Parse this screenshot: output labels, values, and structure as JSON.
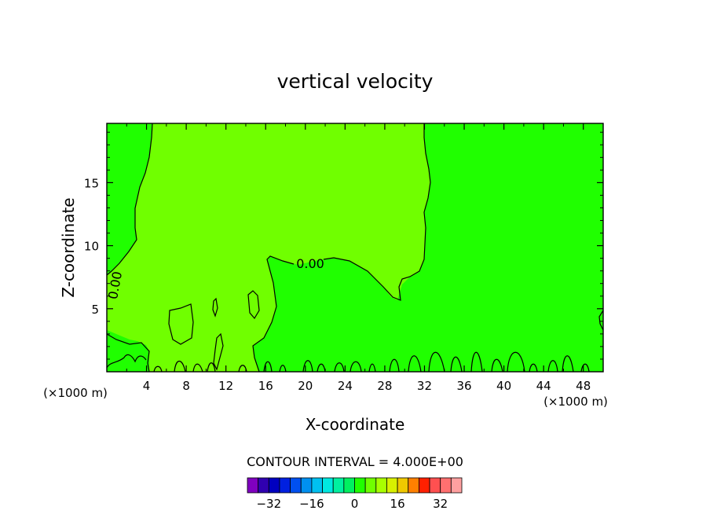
{
  "chart_data": {
    "type": "contour",
    "title": "vertical velocity",
    "xlabel": "X-coordinate",
    "ylabel": "Z-coordinate",
    "x_unit": "(×1000 m)",
    "y_unit": "(×1000 m)",
    "xlim": [
      0,
      50
    ],
    "ylim": [
      0,
      19.7
    ],
    "xticks": [
      4,
      8,
      12,
      16,
      20,
      24,
      28,
      32,
      36,
      40,
      44,
      48
    ],
    "yticks": [
      5,
      10,
      15
    ],
    "contour_label": "0.00",
    "contour_interval_text": "CONTOUR INTERVAL = 4.000E+00",
    "colorbar": {
      "ticks": [
        -32,
        -16,
        0,
        16,
        32
      ],
      "levels": [
        -36,
        -32,
        -28,
        -24,
        -20,
        -16,
        -12,
        -8,
        -4,
        0,
        4,
        8,
        12,
        16,
        20,
        24,
        28,
        32,
        36
      ],
      "colors": [
        "#8000c0",
        "#3000b0",
        "#0000c0",
        "#0020e0",
        "#0050f0",
        "#0090f0",
        "#00c0f0",
        "#00e8e0",
        "#00f0a0",
        "#00f060",
        "#20ff00",
        "#70ff00",
        "#a8ff00",
        "#d8f000",
        "#f0c800",
        "#ff8000",
        "#ff2000",
        "#ff5050",
        "#ff7070",
        "#ffa0a0"
      ]
    },
    "fill_colors": {
      "negative_small": "#20ff00",
      "positive_small": "#70ff00"
    },
    "positive_region_zero_contour": [
      [
        4.6,
        19.7
      ],
      [
        4.5,
        18
      ],
      [
        4.2,
        17
      ],
      [
        3.8,
        16
      ],
      [
        3.5,
        15
      ],
      [
        2.9,
        13
      ],
      [
        2.8,
        12
      ],
      [
        3,
        11
      ],
      [
        2.7,
        10
      ],
      [
        1.5,
        9.3
      ],
      [
        0.5,
        8.2
      ],
      [
        0,
        7.7
      ]
    ],
    "positive_region_right_contour": [
      [
        31.6,
        19.7
      ],
      [
        31.7,
        18
      ],
      [
        32.2,
        16.8
      ],
      [
        32.4,
        15
      ],
      [
        31.6,
        13.5
      ],
      [
        31.2,
        12
      ],
      [
        31.4,
        10
      ],
      [
        31,
        8.7
      ],
      [
        30,
        7.5
      ],
      [
        28.8,
        7.4
      ],
      [
        29,
        6
      ],
      [
        28.5,
        5.6
      ],
      [
        27.8,
        6.3
      ],
      [
        26.2,
        7.7
      ],
      [
        24,
        8.8
      ],
      [
        21,
        9
      ],
      [
        18.4,
        8.8
      ],
      [
        17,
        9.1
      ],
      [
        16.2,
        8.8
      ],
      [
        16.8,
        7.2
      ],
      [
        16.4,
        5
      ],
      [
        15.5,
        3
      ],
      [
        14.8,
        2.3
      ]
    ]
  }
}
